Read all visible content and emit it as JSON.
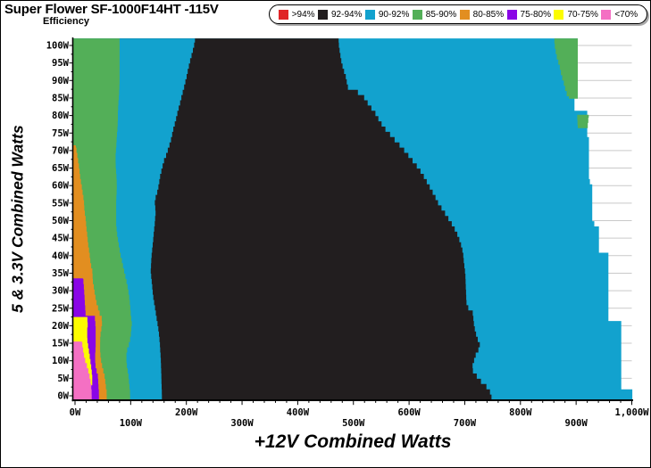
{
  "title": "Super Flower SF-1000F14HT -115V",
  "subtitle": "Efficiency",
  "legend": {
    "items": [
      {
        "label": ">94%",
        "color": "#E02427"
      },
      {
        "label": "92-94%",
        "color": "#221E1F"
      },
      {
        "label": "90-92%",
        "color": "#12A2CE"
      },
      {
        "label": "85-90%",
        "color": "#53AF58"
      },
      {
        "label": "80-85%",
        "color": "#E28E20"
      },
      {
        "label": "75-80%",
        "color": "#8A05E6"
      },
      {
        "label": "70-75%",
        "color": "#FCFC00"
      },
      {
        "label": "<70%",
        "color": "#F470C3"
      }
    ]
  },
  "chart_data": {
    "type": "heatmap",
    "title": "Super Flower SF-1000F14HT -115V Efficiency",
    "xlabel": "+12V Combined Watts",
    "ylabel": "5 & 3.3V Combined Watts",
    "xlim": [
      0,
      1000
    ],
    "ylim": [
      0,
      100
    ],
    "grid": "horizontal-only",
    "grid_color": "#C9C9C9",
    "axis_color": "#000000",
    "background": "#FFFFFF",
    "x_major_step": 100,
    "x_minor_step": 20,
    "y_major_step": 5,
    "y_minor_step": 2.5,
    "x_tick_values": [
      0,
      100,
      200,
      300,
      400,
      500,
      600,
      700,
      800,
      900,
      1000
    ],
    "x_tick_labels": [
      "0W",
      "100W",
      "200W",
      "300W",
      "400W",
      "500W",
      "600W",
      "700W",
      "800W",
      "900W",
      "1,000W"
    ],
    "y_tick_values": [
      0,
      5,
      10,
      15,
      20,
      25,
      30,
      35,
      40,
      45,
      50,
      55,
      60,
      65,
      70,
      75,
      80,
      85,
      90,
      95,
      100
    ],
    "y_tick_labels": [
      "0W",
      "5W",
      "10W",
      "15W",
      "20W",
      "25W",
      "30W",
      "35W",
      "40W",
      "45W",
      "50W",
      "55W",
      "60W",
      "65W",
      "70W",
      "75W",
      "80W",
      "85W",
      "90W",
      "95W",
      "100W"
    ],
    "bands_note": "Efficiency regions painted in order; each band is filled from the left axis to its right_edge_w polyline ([y_watts, x_watts] points) over y_range; later bands overdraw earlier ones.",
    "bands": [
      {
        "name": "cyan-right",
        "efficiency": "90-92%",
        "color": "#12A2CE",
        "y_range": [
          -1.15,
          102
        ],
        "right_edge_w": [
          [
            -1.15,
            1001
          ],
          [
            1.5,
            1001
          ],
          [
            1.6,
            981
          ],
          [
            20,
            981
          ],
          [
            20.5,
            958
          ],
          [
            40,
            958
          ],
          [
            40.5,
            941
          ],
          [
            48,
            941
          ],
          [
            48.5,
            929
          ],
          [
            60,
            929
          ],
          [
            60.5,
            923
          ],
          [
            73,
            923
          ],
          [
            73.2,
            920
          ],
          [
            80,
            920
          ],
          [
            80.3,
            897
          ],
          [
            84.8,
            897
          ],
          [
            85,
            903
          ],
          [
            102,
            903
          ]
        ]
      },
      {
        "name": "black-core",
        "efficiency": "92-94%",
        "color": "#221E1F",
        "y_range": [
          -1.15,
          102
        ],
        "right_edge_w": [
          [
            -1.15,
            748
          ],
          [
            0.5,
            745
          ],
          [
            1.5,
            741
          ],
          [
            2.5,
            735
          ],
          [
            3.5,
            728
          ],
          [
            4.5,
            723
          ],
          [
            5.5,
            719
          ],
          [
            6.5,
            714
          ],
          [
            8,
            714
          ],
          [
            9.5,
            717
          ],
          [
            11,
            720
          ],
          [
            12.5,
            725
          ],
          [
            13.5,
            728
          ],
          [
            15,
            724
          ],
          [
            17,
            720
          ],
          [
            19,
            717
          ],
          [
            22,
            715
          ],
          [
            23.5,
            714
          ],
          [
            24.5,
            705
          ],
          [
            26,
            703
          ],
          [
            30,
            702
          ],
          [
            34,
            701
          ],
          [
            38,
            698
          ],
          [
            40,
            697
          ],
          [
            42,
            694
          ],
          [
            44,
            690
          ],
          [
            46,
            685
          ],
          [
            48,
            678
          ],
          [
            50,
            670
          ],
          [
            52,
            662
          ],
          [
            54,
            653
          ],
          [
            56,
            647
          ],
          [
            58,
            640
          ],
          [
            60,
            633
          ],
          [
            62,
            626
          ],
          [
            64,
            618
          ],
          [
            66,
            608
          ],
          [
            68,
            598
          ],
          [
            70,
            588
          ],
          [
            72,
            576
          ],
          [
            74,
            565
          ],
          [
            76,
            554
          ],
          [
            78,
            546
          ],
          [
            80,
            539
          ],
          [
            82,
            529
          ],
          [
            84,
            521
          ],
          [
            85.5,
            514
          ],
          [
            86.5,
            497
          ],
          [
            87.5,
            489
          ],
          [
            89,
            488
          ],
          [
            90,
            487
          ],
          [
            91.5,
            484
          ],
          [
            93,
            481
          ],
          [
            95,
            478
          ],
          [
            97,
            476
          ],
          [
            99,
            474
          ],
          [
            102,
            473
          ]
        ]
      },
      {
        "name": "cyan-left",
        "efficiency": "90-92%",
        "color": "#12A2CE",
        "y_range": [
          -1.15,
          102
        ],
        "right_edge_w": [
          [
            -1.15,
            156
          ],
          [
            0,
            156
          ],
          [
            5,
            155
          ],
          [
            10,
            154
          ],
          [
            15,
            152
          ],
          [
            18,
            150
          ],
          [
            20,
            148
          ],
          [
            23,
            145
          ],
          [
            25,
            143
          ],
          [
            28,
            140
          ],
          [
            30,
            139
          ],
          [
            33,
            137
          ],
          [
            35,
            136
          ],
          [
            38,
            137
          ],
          [
            40,
            138
          ],
          [
            43,
            140
          ],
          [
            45,
            141
          ],
          [
            48,
            143
          ],
          [
            50,
            144
          ],
          [
            52,
            145
          ],
          [
            54,
            143
          ],
          [
            56,
            145
          ],
          [
            58,
            149
          ],
          [
            60,
            151
          ],
          [
            62,
            153
          ],
          [
            64,
            156
          ],
          [
            66,
            159
          ],
          [
            68,
            164
          ],
          [
            70,
            168
          ],
          [
            72,
            172
          ],
          [
            75,
            176
          ],
          [
            78,
            181
          ],
          [
            80,
            184
          ],
          [
            83,
            189
          ],
          [
            85,
            192
          ],
          [
            88,
            197
          ],
          [
            90,
            200
          ],
          [
            93,
            204
          ],
          [
            95,
            207
          ],
          [
            98,
            212
          ],
          [
            100,
            215
          ],
          [
            102,
            216
          ]
        ]
      },
      {
        "name": "green-left",
        "efficiency": "85-90%",
        "color": "#53AF58",
        "y_range": [
          -1.15,
          102
        ],
        "right_edge_w": [
          [
            -1.15,
            99
          ],
          [
            0,
            99
          ],
          [
            3,
            97
          ],
          [
            5,
            96
          ],
          [
            8,
            93
          ],
          [
            10,
            92
          ],
          [
            12,
            93
          ],
          [
            14,
            97
          ],
          [
            16,
            100
          ],
          [
            18,
            101
          ],
          [
            20,
            102
          ],
          [
            23,
            100
          ],
          [
            25,
            99
          ],
          [
            28,
            97
          ],
          [
            30,
            95
          ],
          [
            33,
            91
          ],
          [
            35,
            88
          ],
          [
            38,
            84
          ],
          [
            40,
            81
          ],
          [
            43,
            78
          ],
          [
            45,
            76
          ],
          [
            48,
            74
          ],
          [
            50,
            74
          ],
          [
            55,
            74
          ],
          [
            58,
            75
          ],
          [
            60,
            75
          ],
          [
            63,
            74
          ],
          [
            65,
            73
          ],
          [
            68,
            73
          ],
          [
            70,
            74
          ],
          [
            73,
            75
          ],
          [
            75,
            76
          ],
          [
            78,
            77
          ],
          [
            80,
            77
          ],
          [
            83,
            78
          ],
          [
            85,
            79
          ],
          [
            88,
            80
          ],
          [
            90,
            80
          ],
          [
            95,
            80
          ],
          [
            100,
            80
          ],
          [
            102,
            80
          ]
        ]
      },
      {
        "name": "orange",
        "efficiency": "80-85%",
        "color": "#E28E20",
        "y_range": [
          -1.15,
          71.5
        ],
        "right_edge_w": [
          [
            -1.15,
            57
          ],
          [
            0,
            57
          ],
          [
            2.5,
            55
          ],
          [
            5,
            53
          ],
          [
            7.5,
            49
          ],
          [
            10,
            46
          ],
          [
            12.5,
            45
          ],
          [
            15,
            45
          ],
          [
            17,
            46
          ],
          [
            19,
            48
          ],
          [
            21,
            49
          ],
          [
            22,
            46
          ],
          [
            24,
            42
          ],
          [
            25,
            40
          ],
          [
            27,
            37
          ],
          [
            30,
            34
          ],
          [
            32,
            32
          ],
          [
            35,
            31
          ],
          [
            37,
            28
          ],
          [
            40,
            26
          ],
          [
            42,
            24
          ],
          [
            45,
            22
          ],
          [
            48,
            20
          ],
          [
            50,
            19
          ],
          [
            52,
            17
          ],
          [
            55,
            16
          ],
          [
            57,
            14
          ],
          [
            60,
            11
          ],
          [
            62,
            9
          ],
          [
            65,
            7
          ],
          [
            67,
            5
          ],
          [
            69,
            3
          ],
          [
            71.5,
            1
          ]
        ]
      },
      {
        "name": "purple",
        "efficiency": "75-80%",
        "color": "#8A05E6",
        "y_range": [
          -1.15,
          33.5
        ],
        "right_edge_w": [
          [
            -1.15,
            43
          ],
          [
            0,
            43
          ],
          [
            2.5,
            42
          ],
          [
            5,
            41
          ],
          [
            7.5,
            37
          ],
          [
            10,
            36
          ],
          [
            13,
            37
          ],
          [
            16,
            37
          ],
          [
            19,
            37
          ],
          [
            21,
            36
          ],
          [
            22.4,
            35
          ],
          [
            22.6,
            19
          ],
          [
            25,
            18
          ],
          [
            28,
            17
          ],
          [
            30,
            16
          ],
          [
            32,
            15
          ],
          [
            33.5,
            14
          ]
        ]
      },
      {
        "name": "yellow",
        "efficiency": "70-75%",
        "color": "#FCFC00",
        "y_range": [
          3,
          22.5
        ],
        "right_edge_w": [
          [
            3,
            31
          ],
          [
            5,
            31
          ],
          [
            7.5,
            29
          ],
          [
            10,
            27
          ],
          [
            12,
            25
          ],
          [
            14,
            23
          ],
          [
            15.5,
            22
          ],
          [
            18,
            22
          ],
          [
            20,
            23
          ],
          [
            21.5,
            22
          ],
          [
            22.5,
            21
          ]
        ]
      },
      {
        "name": "pink",
        "efficiency": "<70%",
        "color": "#F470C3",
        "y_range": [
          -1.15,
          15.5
        ],
        "right_edge_w": [
          [
            -1.15,
            30
          ],
          [
            0,
            30
          ],
          [
            2.5,
            29
          ],
          [
            5,
            26
          ],
          [
            7.5,
            22
          ],
          [
            10,
            17
          ],
          [
            12,
            15
          ],
          [
            14,
            13
          ],
          [
            15.5,
            12
          ]
        ]
      }
    ],
    "extra_regions": [
      {
        "name": "green-top-right",
        "efficiency": "85-90%",
        "color": "#53AF58",
        "y_range": [
          84.8,
          102
        ],
        "left_edge_w": [
          [
            84.8,
            890
          ],
          [
            86,
            885
          ],
          [
            88,
            881
          ],
          [
            90,
            878
          ],
          [
            92,
            874
          ],
          [
            95,
            870
          ],
          [
            97,
            866
          ],
          [
            100,
            862
          ],
          [
            102,
            861
          ]
        ],
        "right_edge_w": [
          [
            84.8,
            903
          ],
          [
            102,
            903
          ]
        ]
      },
      {
        "name": "green-right-blob",
        "efficiency": "85-90%",
        "color": "#53AF58",
        "y_range": [
          76.4,
          80.2
        ],
        "left_edge_w": [
          [
            76.4,
            906
          ],
          [
            77.2,
            903
          ],
          [
            80.2,
            902
          ]
        ],
        "right_edge_w": [
          [
            76.4,
            921
          ],
          [
            78,
            922
          ],
          [
            80.2,
            923
          ]
        ]
      }
    ]
  }
}
